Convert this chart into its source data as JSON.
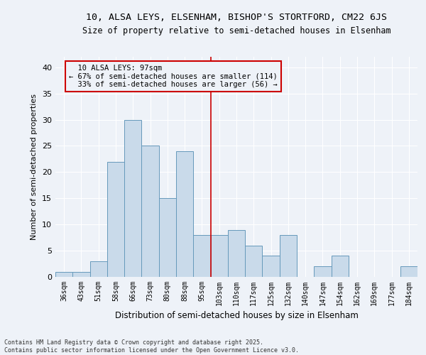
{
  "title1": "10, ALSA LEYS, ELSENHAM, BISHOP'S STORTFORD, CM22 6JS",
  "title2": "Size of property relative to semi-detached houses in Elsenham",
  "xlabel": "Distribution of semi-detached houses by size in Elsenham",
  "ylabel": "Number of semi-detached properties",
  "categories": [
    "36sqm",
    "43sqm",
    "51sqm",
    "58sqm",
    "66sqm",
    "73sqm",
    "80sqm",
    "88sqm",
    "95sqm",
    "103sqm",
    "110sqm",
    "117sqm",
    "125sqm",
    "132sqm",
    "140sqm",
    "147sqm",
    "154sqm",
    "162sqm",
    "169sqm",
    "177sqm",
    "184sqm"
  ],
  "values": [
    1,
    1,
    3,
    22,
    30,
    25,
    15,
    24,
    8,
    8,
    9,
    6,
    4,
    8,
    0,
    2,
    4,
    0,
    0,
    0,
    2
  ],
  "bar_color": "#c9daea",
  "bar_edge_color": "#6699bb",
  "reference_line_x": 8.5,
  "reference_label": "10 ALSA LEYS: 97sqm",
  "pct_smaller": 67,
  "pct_smaller_n": 114,
  "pct_larger": 33,
  "pct_larger_n": 56,
  "ylim": [
    0,
    42
  ],
  "yticks": [
    0,
    5,
    10,
    15,
    20,
    25,
    30,
    35,
    40
  ],
  "background_color": "#eef2f8",
  "grid_color": "#ffffff",
  "footer": "Contains HM Land Registry data © Crown copyright and database right 2025.\nContains public sector information licensed under the Open Government Licence v3.0."
}
